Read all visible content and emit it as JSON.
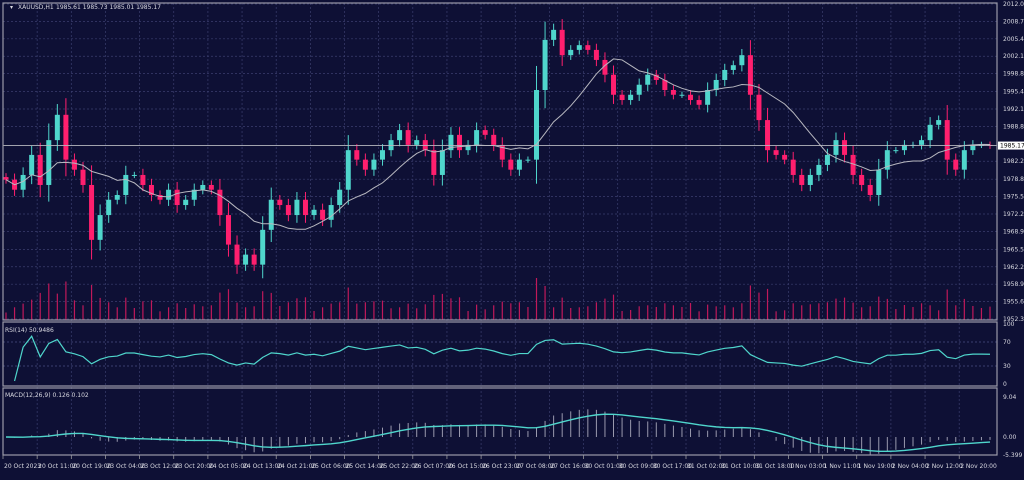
{
  "header": {
    "symbol": "XAUUSD,H1",
    "ohlc": "1985.61 1985.73 1985.01 1985.17"
  },
  "colors": {
    "background": "#0e1035",
    "grid": "#3b3e6e",
    "bull": "#4fd6cc",
    "bear": "#ff1f6e",
    "moving_average": "#b8b8c0",
    "volume": "#c0195a",
    "rsi_line": "#4fd6cc",
    "macd_histogram": "#9a9aae",
    "macd_signal": "#4fd6cc",
    "pane_separator": "#9a9aa8"
  },
  "rsi": {
    "label": "RSI(14) 50.9486",
    "levels": [
      "100",
      "70",
      "30",
      "0"
    ]
  },
  "macd": {
    "label": "MACD(12,26,9) 0.126 0.102",
    "levels": [
      "9.04",
      "0.00",
      "-5.399"
    ]
  },
  "chart_data": {
    "type": "candlestick",
    "title": "XAUUSD,H1",
    "ylim": [
      1952.3,
      2012.0
    ],
    "grid": true,
    "current_price": "1985.17",
    "price_ticks": [
      "2012.00",
      "2008.70",
      "2005.40",
      "2002.10",
      "1998.80",
      "1995.40",
      "1992.10",
      "1988.80",
      "1982.20",
      "1978.80",
      "1975.50",
      "1972.20",
      "1968.90",
      "1965.50",
      "1962.20",
      "1958.90",
      "1955.60",
      "1952.30"
    ],
    "time_ticks": [
      "20 Oct 2023",
      "20 Oct 11:00",
      "20 Oct 19:00",
      "23 Oct 04:00",
      "23 Oct 12:00",
      "23 Oct 20:00",
      "24 Oct 05:00",
      "24 Oct 13:00",
      "24 Oct 21:00",
      "25 Oct 06:00",
      "25 Oct 14:00",
      "25 Oct 22:00",
      "26 Oct 07:00",
      "26 Oct 15:00",
      "26 Oct 23:00",
      "27 Oct 08:00",
      "27 Oct 16:00",
      "30 Oct 01:00",
      "30 Oct 09:00",
      "30 Oct 17:00",
      "31 Oct 02:00",
      "31 Oct 10:00",
      "31 Oct 18:00",
      "1 Nov 03:00",
      "1 Nov 11:00",
      "1 Nov 19:00",
      "2 Nov 04:00",
      "2 Nov 12:00",
      "2 Nov 20:00"
    ],
    "closes": [
      1978.7,
      1976.8,
      1979.6,
      1983.4,
      1977.7,
      1986.2,
      1991.0,
      1982.5,
      1980.6,
      1977.7,
      1967.3,
      1972.0,
      1974.9,
      1975.8,
      1979.6,
      1979.6,
      1977.7,
      1975.8,
      1974.9,
      1976.8,
      1973.9,
      1974.9,
      1976.8,
      1977.7,
      1976.8,
      1972.0,
      1966.4,
      1962.6,
      1964.5,
      1962.6,
      1969.2,
      1974.9,
      1973.9,
      1972.0,
      1974.9,
      1972.0,
      1973.0,
      1971.1,
      1973.9,
      1976.8,
      1984.3,
      1982.5,
      1980.6,
      1982.5,
      1984.3,
      1986.2,
      1988.1,
      1985.3,
      1986.2,
      1984.3,
      1979.6,
      1984.3,
      1987.2,
      1984.3,
      1985.3,
      1988.1,
      1987.2,
      1985.3,
      1982.5,
      1980.6,
      1982.5,
      1982.5,
      1995.7,
      2005.2,
      2007.1,
      2002.3,
      2003.3,
      2004.2,
      2003.3,
      2001.4,
      1998.6,
      1994.8,
      1993.8,
      1994.8,
      1996.7,
      1998.6,
      1997.6,
      1995.7,
      1994.8,
      1994.8,
      1993.8,
      1992.9,
      1995.7,
      1997.6,
      1999.5,
      2000.4,
      2002.3,
      1994.8,
      1990.0,
      1984.3,
      1983.4,
      1982.5,
      1979.6,
      1977.7,
      1979.6,
      1981.5,
      1983.4,
      1986.2,
      1983.4,
      1979.6,
      1977.7,
      1975.8,
      1980.6,
      1984.3,
      1984.3,
      1985.3,
      1985.3,
      1986.2,
      1989.1,
      1990.0,
      1982.5,
      1980.6,
      1984.3,
      1985.3,
      1985.3,
      1985.17
    ]
  }
}
